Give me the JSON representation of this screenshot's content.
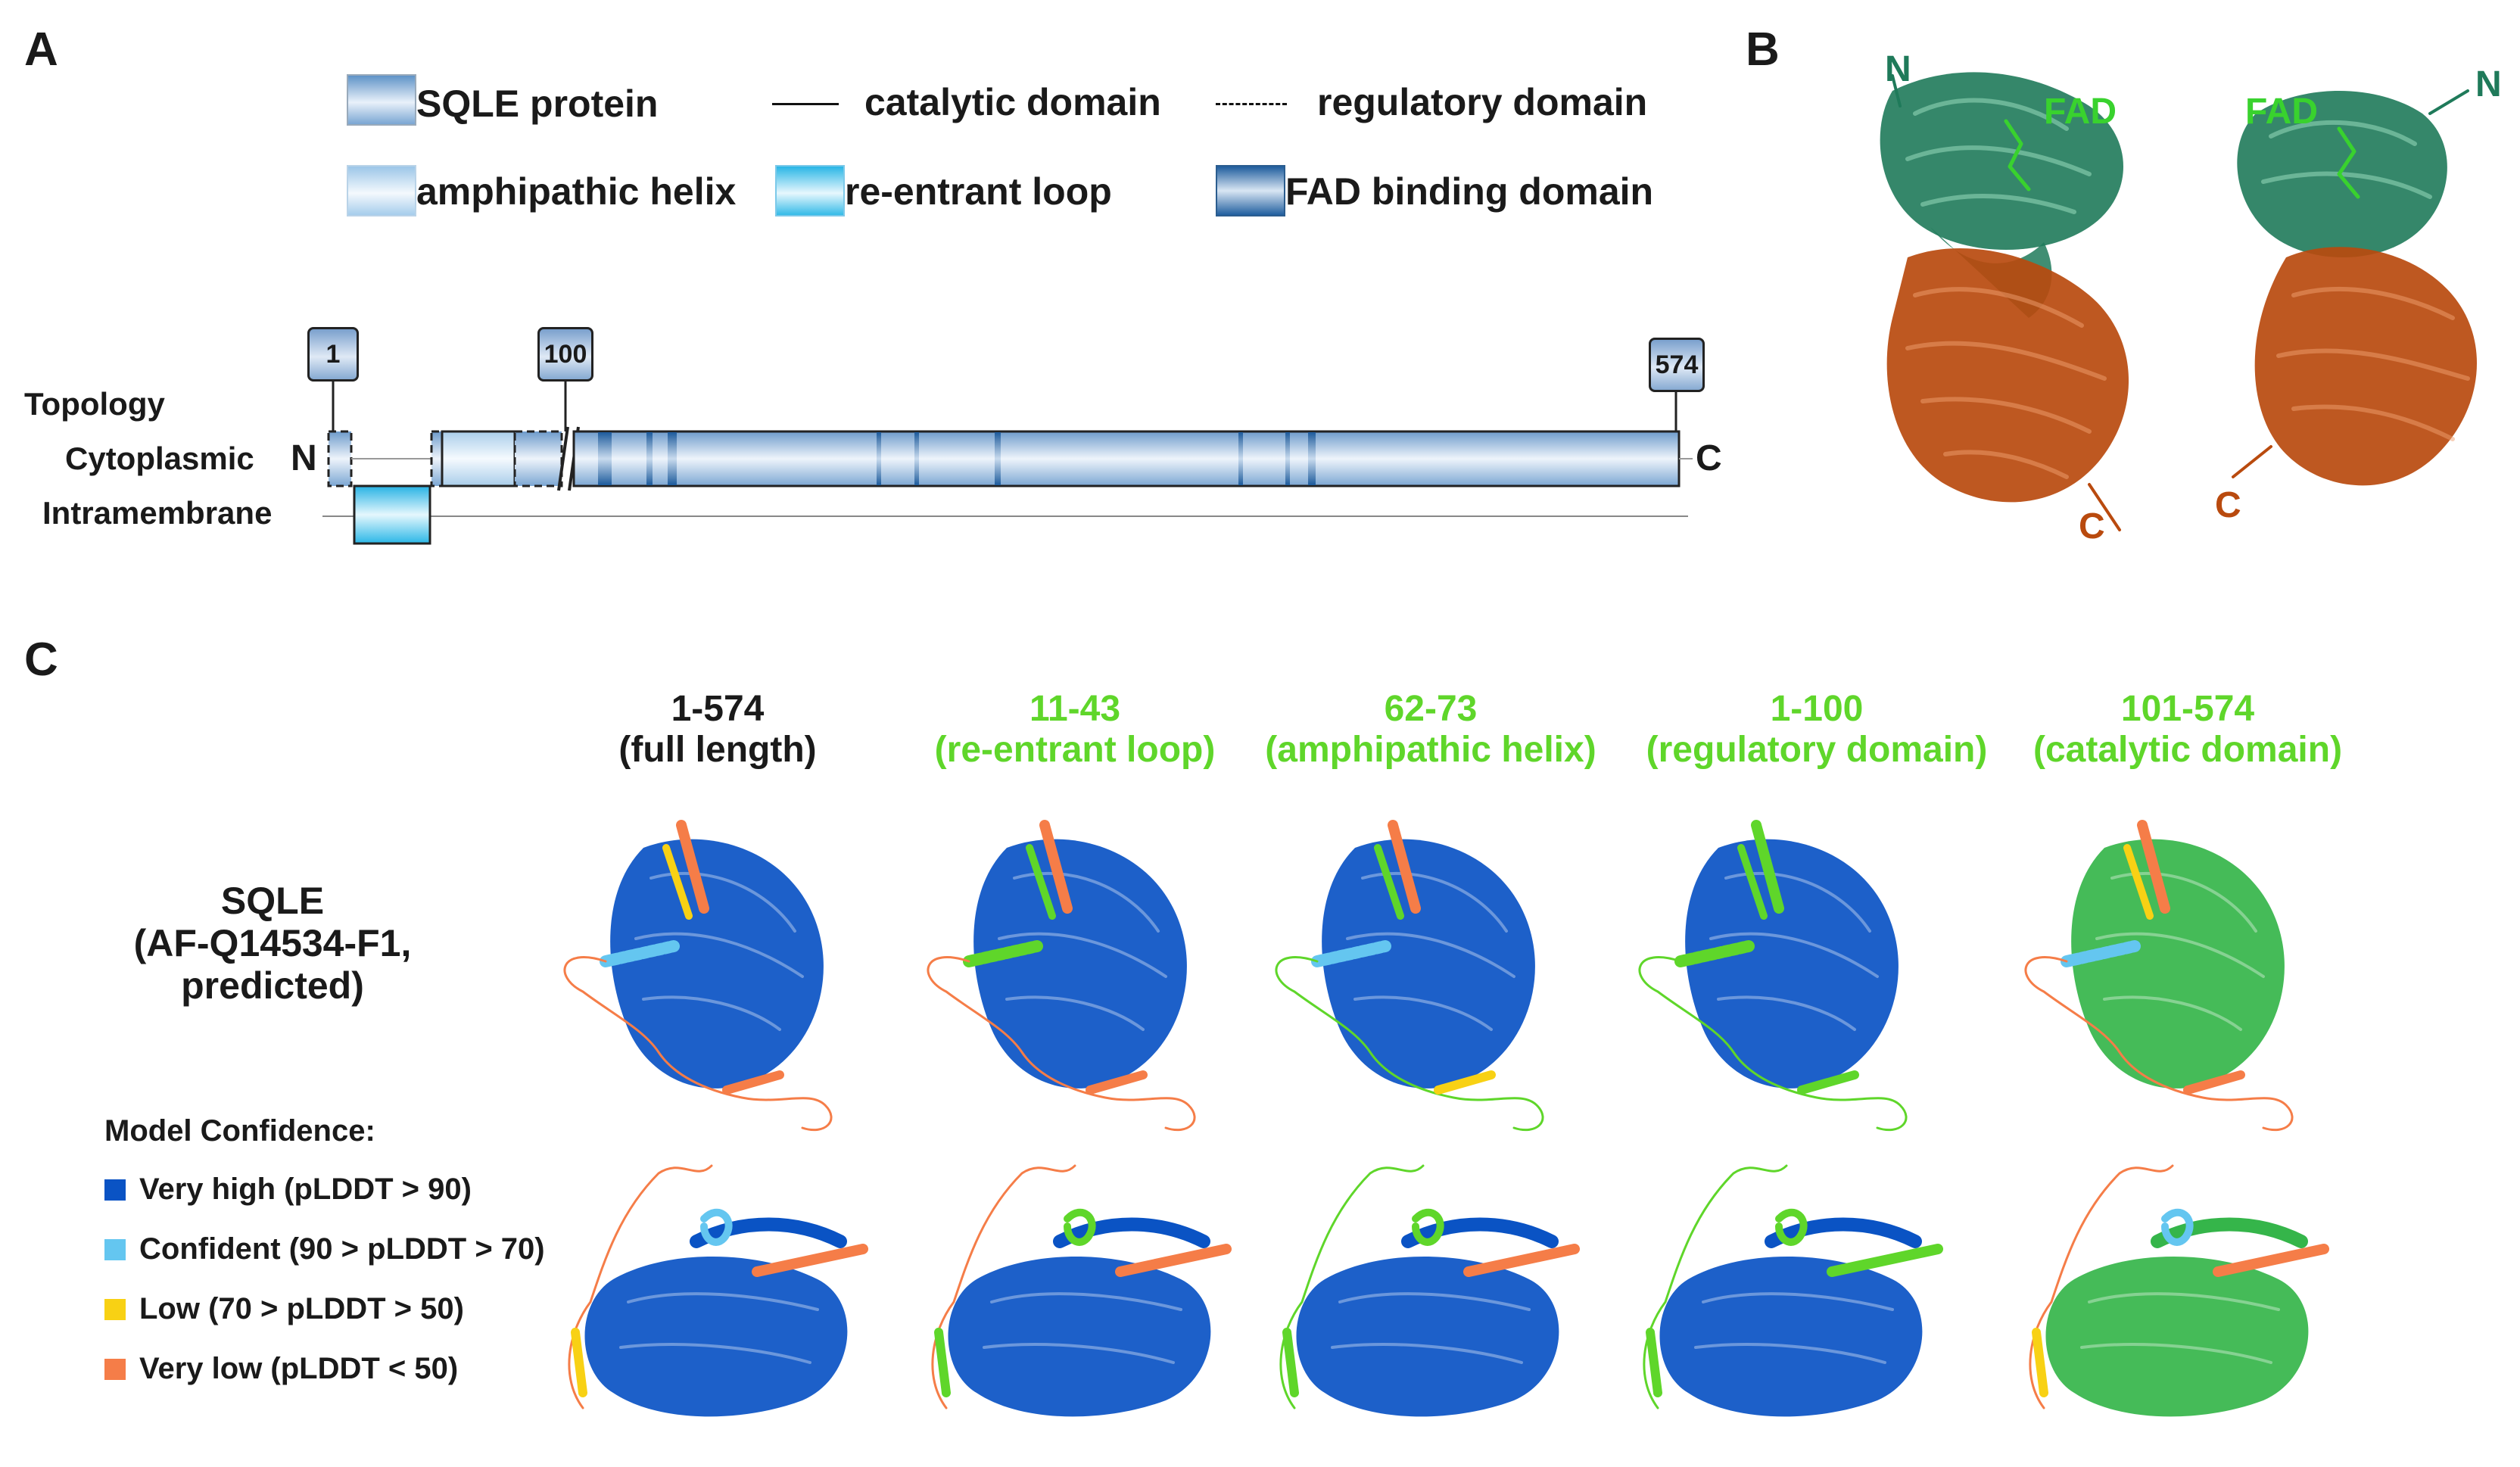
{
  "panels": {
    "A": "A",
    "B": "B",
    "C": "C"
  },
  "legend": {
    "sqle_protein": "SQLE protein",
    "catalytic_domain": "catalytic domain",
    "regulatory_domain": "regulatory domain",
    "amphipathic_helix": "amphipathic helix",
    "reentrant_loop": "re-entrant loop",
    "fad_binding_domain": "FAD binding domain"
  },
  "topology": {
    "topology_label": "Topology",
    "cytoplasmic_label": "Cytoplasmic",
    "intramembrane_label": "Intramembrane",
    "n_term": "N",
    "c_term": "C",
    "markers": [
      "1",
      "100",
      "574"
    ]
  },
  "panel_b": {
    "left": {
      "n": "N",
      "fad": "FAD",
      "c": "C"
    },
    "right": {
      "n": "N",
      "fad": "FAD",
      "c": "C"
    }
  },
  "panel_c": {
    "row_label": [
      "SQLE",
      "(AF-Q14534-F1,",
      "predicted)"
    ],
    "columns": [
      {
        "range": "1-574",
        "desc": "(full length)",
        "color": "#111111"
      },
      {
        "range": "11-43",
        "desc": "(re-entrant loop)",
        "color": "#5fd62a"
      },
      {
        "range": "62-73",
        "desc": "(amphipathic helix)",
        "color": "#5fd62a"
      },
      {
        "range": "1-100",
        "desc": "(regulatory domain)",
        "color": "#5fd62a"
      },
      {
        "range": "101-574",
        "desc": "(catalytic domain)",
        "color": "#5fd62a"
      }
    ],
    "confidence": {
      "title": "Model Confidence:",
      "items": [
        {
          "label": "Very high (pLDDT > 90)",
          "color": "#0a53c4"
        },
        {
          "label": "Confident (90 > pLDDT > 70)",
          "color": "#64c6f0"
        },
        {
          "label": "Low (70 > pLDDT > 50)",
          "color": "#f8d114"
        },
        {
          "label": "Very low (pLDDT < 50)",
          "color": "#f57d48"
        }
      ]
    }
  },
  "colors": {
    "pb_teal": "#1f7a5a",
    "pb_orange": "#b94a0e",
    "pb_fad": "#39d22e",
    "highlight_green": "#5fd62a",
    "catalytic_green": "#35b54a"
  }
}
